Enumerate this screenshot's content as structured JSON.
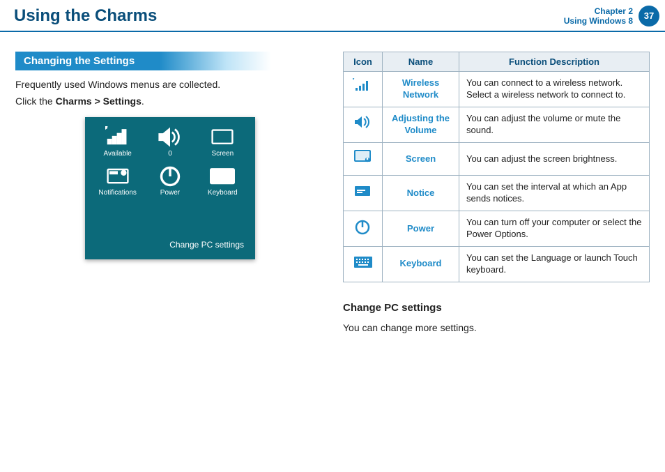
{
  "header": {
    "title": "Using the Charms",
    "chapter_line1": "Chapter 2",
    "chapter_line2": "Using Windows 8",
    "page_number": "37"
  },
  "section": {
    "heading": "Changing the Settings",
    "intro_line1": "Frequently used Windows menus are collected.",
    "intro_line2_pre": "Click the ",
    "intro_line2_bold": "Charms > Settings",
    "intro_line2_post": "."
  },
  "panel": {
    "items": [
      {
        "label": "Available"
      },
      {
        "label": "0"
      },
      {
        "label": "Screen"
      },
      {
        "label": "Notifications"
      },
      {
        "label": "Power"
      },
      {
        "label": "Keyboard"
      }
    ],
    "change_link": "Change PC settings",
    "bg_color": "#0c6a7a"
  },
  "table": {
    "columns": [
      "Icon",
      "Name",
      "Function Description"
    ],
    "rows": [
      {
        "icon": "wifi",
        "icon_color": "#1f8bc8",
        "name": "Wireless Network",
        "desc": "You can connect to a wireless network. Select a wireless network to connect to."
      },
      {
        "icon": "volume",
        "icon_color": "#1f8bc8",
        "name": "Adjusting the Volume",
        "desc": "You can adjust the volume or mute the sound."
      },
      {
        "icon": "screen",
        "icon_color": "#1f8bc8",
        "name": "Screen",
        "desc": "You can adjust the screen brightness."
      },
      {
        "icon": "notice",
        "icon_color": "#1f8bc8",
        "name": "Notice",
        "desc": "You can set the interval at which an App sends notices."
      },
      {
        "icon": "power",
        "icon_color": "#1f8bc8",
        "name": "Power",
        "desc": "You can turn off your computer or select the Power Options."
      },
      {
        "icon": "keyboard",
        "icon_color": "#1f8bc8",
        "name": "Keyboard",
        "desc": "You can set the Language or launch Touch keyboard."
      }
    ]
  },
  "sub": {
    "heading": "Change PC settings",
    "text": "You can change more settings."
  },
  "colors": {
    "accent": "#0a6aa8",
    "pill": "#1f8bc8",
    "table_header_bg": "#e8eef3",
    "table_border": "#9fb3c2",
    "name_color": "#1f8bc8"
  }
}
